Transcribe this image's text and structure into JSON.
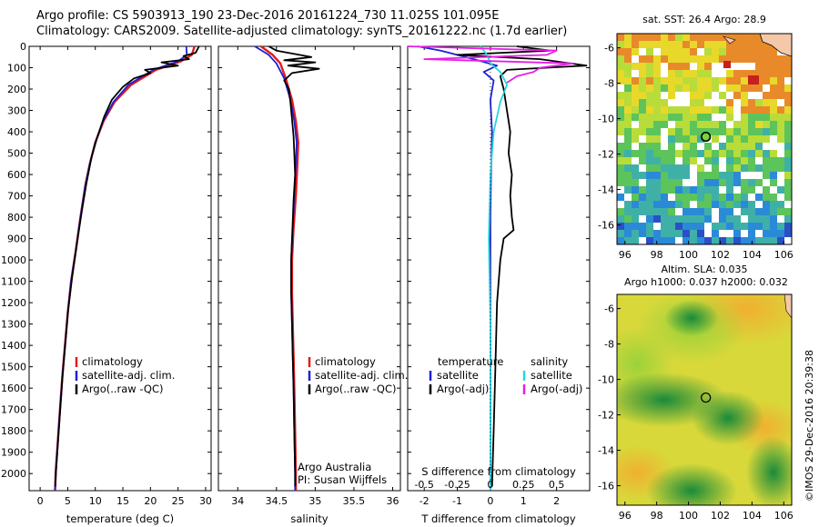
{
  "header": {
    "line1": "Argo profile: CS 5903913_190 23-Dec-2016 20161224_730 11.025S 101.095E",
    "line2": "Climatology: CARS2009. Satellite-adjusted climatology: synTS_20161222.nc (1.7d earlier)"
  },
  "colors": {
    "climatology": "#e41a1c",
    "satellite": "#1f1fd6",
    "argo": "#000000",
    "sat_cyan": "#22d8e0",
    "argo_magenta": "#e61ee6"
  },
  "chart_data": [
    {
      "id": "temperature",
      "type": "line",
      "xlabel": "temperature (deg C)",
      "xlim": [
        -2,
        31
      ],
      "ylim": [
        2080,
        0
      ],
      "xticks": [
        0,
        5,
        10,
        15,
        20,
        25,
        30
      ],
      "yticks": [
        0,
        100,
        200,
        300,
        400,
        500,
        600,
        700,
        800,
        900,
        1000,
        1100,
        1200,
        1300,
        1400,
        1500,
        1600,
        1700,
        1800,
        1900,
        2000
      ],
      "legend": [
        "climatology",
        "satellite-adj. clim.",
        "Argo(..raw -QC)"
      ],
      "series": [
        {
          "name": "climatology",
          "color": "#e41a1c",
          "points": [
            [
              28,
              0
            ],
            [
              27.5,
              40
            ],
            [
              25.5,
              70
            ],
            [
              21,
              110
            ],
            [
              16.5,
              180
            ],
            [
              13.5,
              260
            ],
            [
              11.5,
              350
            ],
            [
              10,
              450
            ],
            [
              9,
              550
            ],
            [
              8.2,
              650
            ],
            [
              7.3,
              800
            ],
            [
              6.5,
              950
            ],
            [
              5.6,
              1100
            ],
            [
              5,
              1250
            ],
            [
              4.5,
              1400
            ],
            [
              4,
              1550
            ],
            [
              3.6,
              1700
            ],
            [
              3.2,
              1850
            ],
            [
              2.8,
              2000
            ],
            [
              2.7,
              2080
            ]
          ]
        },
        {
          "name": "satellite-adj. clim.",
          "color": "#1f1fd6",
          "points": [
            [
              26.5,
              0
            ],
            [
              26.6,
              40
            ],
            [
              25,
              70
            ],
            [
              20.5,
              110
            ],
            [
              16,
              180
            ],
            [
              13.3,
              260
            ],
            [
              11.4,
              350
            ],
            [
              10,
              450
            ],
            [
              9,
              550
            ],
            [
              8.2,
              650
            ],
            [
              7.3,
              800
            ],
            [
              6.5,
              950
            ],
            [
              5.6,
              1100
            ],
            [
              5,
              1250
            ],
            [
              4.5,
              1400
            ],
            [
              4,
              1550
            ],
            [
              3.6,
              1700
            ],
            [
              3.2,
              1850
            ],
            [
              2.8,
              2000
            ],
            [
              2.7,
              2080
            ]
          ]
        },
        {
          "name": "Argo(..raw -QC)",
          "color": "#000000",
          "points": [
            [
              28.8,
              0
            ],
            [
              28.2,
              30
            ],
            [
              26,
              45
            ],
            [
              27,
              60
            ],
            [
              22,
              75
            ],
            [
              25,
              90
            ],
            [
              19,
              110
            ],
            [
              20,
              125
            ],
            [
              17,
              150
            ],
            [
              15,
              190
            ],
            [
              13,
              250
            ],
            [
              11.6,
              330
            ],
            [
              10.3,
              430
            ],
            [
              9.3,
              520
            ],
            [
              8.4,
              640
            ],
            [
              7.5,
              780
            ],
            [
              6.8,
              900
            ],
            [
              5.8,
              1080
            ],
            [
              5.1,
              1230
            ],
            [
              4.6,
              1380
            ],
            [
              4.1,
              1530
            ],
            [
              3.7,
              1680
            ],
            [
              3.3,
              1830
            ],
            [
              2.9,
              1980
            ],
            [
              2.75,
              2060
            ]
          ]
        }
      ]
    },
    {
      "id": "salinity",
      "type": "line",
      "xlabel": "salinity",
      "xlim": [
        33.75,
        36.1
      ],
      "ylim": [
        2080,
        0
      ],
      "xticks": [
        34,
        34.5,
        35,
        35.5,
        36
      ],
      "legend": [
        "climatology",
        "satellite-adj. clim.",
        "Argo(..raw -QC)"
      ],
      "annotations": [
        "Argo Australia",
        "PI: Susan Wijffels"
      ],
      "series": [
        {
          "name": "climatology",
          "color": "#e41a1c",
          "points": [
            [
              34.3,
              0
            ],
            [
              34.45,
              40
            ],
            [
              34.55,
              80
            ],
            [
              34.62,
              150
            ],
            [
              34.7,
              250
            ],
            [
              34.75,
              350
            ],
            [
              34.78,
              450
            ],
            [
              34.77,
              550
            ],
            [
              34.75,
              700
            ],
            [
              34.72,
              850
            ],
            [
              34.7,
              1000
            ],
            [
              34.7,
              1150
            ],
            [
              34.71,
              1300
            ],
            [
              34.72,
              1450
            ],
            [
              34.73,
              1600
            ],
            [
              34.74,
              1800
            ],
            [
              34.75,
              2000
            ],
            [
              34.75,
              2080
            ]
          ]
        },
        {
          "name": "satellite-adj. clim.",
          "color": "#1f1fd6",
          "points": [
            [
              34.22,
              0
            ],
            [
              34.4,
              40
            ],
            [
              34.5,
              80
            ],
            [
              34.6,
              150
            ],
            [
              34.68,
              250
            ],
            [
              34.73,
              350
            ],
            [
              34.76,
              450
            ],
            [
              34.75,
              550
            ],
            [
              34.73,
              700
            ],
            [
              34.71,
              850
            ],
            [
              34.69,
              1000
            ],
            [
              34.69,
              1150
            ],
            [
              34.7,
              1300
            ],
            [
              34.71,
              1450
            ],
            [
              34.72,
              1600
            ],
            [
              34.73,
              1800
            ],
            [
              34.74,
              2000
            ],
            [
              34.74,
              2080
            ]
          ]
        },
        {
          "name": "Argo(..raw -QC)",
          "color": "#000000",
          "points": [
            [
              34.4,
              0
            ],
            [
              34.5,
              20
            ],
            [
              34.95,
              50
            ],
            [
              34.6,
              65
            ],
            [
              35.0,
              75
            ],
            [
              34.65,
              90
            ],
            [
              35.05,
              105
            ],
            [
              34.7,
              125
            ],
            [
              34.6,
              160
            ],
            [
              34.66,
              200
            ],
            [
              34.68,
              260
            ],
            [
              34.7,
              340
            ],
            [
              34.72,
              420
            ],
            [
              34.73,
              500
            ],
            [
              34.74,
              600
            ],
            [
              34.72,
              720
            ],
            [
              34.71,
              820
            ],
            [
              34.7,
              900
            ],
            [
              34.69,
              1000
            ],
            [
              34.69,
              1150
            ],
            [
              34.7,
              1300
            ],
            [
              34.71,
              1450
            ],
            [
              34.72,
              1600
            ],
            [
              34.73,
              1800
            ],
            [
              34.74,
              2000
            ],
            [
              34.74,
              2060
            ]
          ]
        }
      ]
    },
    {
      "id": "difference",
      "type": "line",
      "xlabel": "T difference from climatology",
      "xlabel2": "S difference from climatology",
      "xlim": [
        -2.5,
        3
      ],
      "ylim": [
        2080,
        0
      ],
      "xticks": [
        -2,
        -1,
        0,
        1,
        2
      ],
      "xticks_top_values": [
        -0.5,
        -0.25,
        0,
        0.25,
        0.5
      ],
      "xticks_top": [
        "-0.5",
        "-0.25",
        "0",
        "0.25",
        "0.5"
      ],
      "legend_left_title": "temperature",
      "legend_right_title": "salinity",
      "legend": [
        "satellite",
        "Argo(-adj)",
        "satellite",
        "Argo(-adj)"
      ],
      "series": [
        {
          "name": "satellite",
          "color": "#1f1fd6",
          "points": [
            [
              -2.2,
              0
            ],
            [
              -1.5,
              20
            ],
            [
              -0.5,
              60
            ],
            [
              0.2,
              90
            ],
            [
              -0.2,
              120
            ],
            [
              0.1,
              160
            ],
            [
              0.0,
              250
            ],
            [
              0.05,
              400
            ],
            [
              0.02,
              600
            ],
            [
              0.0,
              800
            ],
            [
              0.0,
              1100
            ],
            [
              0.0,
              1500
            ],
            [
              0.0,
              2080
            ]
          ]
        },
        {
          "name": "Argo(-adj)",
          "color": "#000000",
          "points": [
            [
              0.8,
              0
            ],
            [
              1.8,
              20
            ],
            [
              -1.0,
              40
            ],
            [
              1.5,
              60
            ],
            [
              2.9,
              90
            ],
            [
              0.5,
              110
            ],
            [
              0.3,
              140
            ],
            [
              0.4,
              200
            ],
            [
              0.5,
              300
            ],
            [
              0.6,
              400
            ],
            [
              0.55,
              500
            ],
            [
              0.65,
              600
            ],
            [
              0.6,
              700
            ],
            [
              0.65,
              800
            ],
            [
              0.7,
              860
            ],
            [
              0.4,
              900
            ],
            [
              0.3,
              1000
            ],
            [
              0.2,
              1200
            ],
            [
              0.15,
              1500
            ],
            [
              0.1,
              1800
            ],
            [
              0.05,
              2060
            ]
          ]
        },
        {
          "name": "satellite",
          "color": "#22d8e0",
          "points": [
            [
              -0.3,
              0
            ],
            [
              -0.1,
              40
            ],
            [
              0.0,
              80
            ],
            [
              0.3,
              120
            ],
            [
              0.5,
              180
            ],
            [
              0.3,
              260
            ],
            [
              0.1,
              400
            ],
            [
              0.0,
              600
            ],
            [
              -0.05,
              900
            ],
            [
              0.0,
              1300
            ],
            [
              0.0,
              1700
            ],
            [
              0.0,
              2080
            ]
          ]
        },
        {
          "name": "Argo(-adj)",
          "color": "#e61ee6",
          "points": [
            [
              -2.5,
              0
            ],
            [
              2.0,
              20
            ],
            [
              1.7,
              40
            ],
            [
              -2.0,
              60
            ],
            [
              2.5,
              80
            ],
            [
              1.5,
              100
            ],
            [
              1.3,
              120
            ],
            [
              0.8,
              140
            ],
            [
              0.5,
              170
            ]
          ]
        }
      ]
    },
    {
      "id": "sst_map",
      "type": "heatmap",
      "title": "sat. SST: 26.4 Argo: 28.9",
      "xticks": [
        "96",
        "98",
        "100",
        "102",
        "104",
        "106"
      ],
      "yticks": [
        "-6",
        "-8",
        "-10",
        "-12",
        "-14",
        "-16"
      ],
      "marker": {
        "lon": 101.095,
        "lat": -11.025
      }
    },
    {
      "id": "sla_map",
      "type": "heatmap",
      "title": "Altim. SLA: 0.035",
      "subtitle": "Argo h1000: 0.037 h2000: 0.032",
      "xticks": [
        "96",
        "98",
        "100",
        "102",
        "104",
        "106"
      ],
      "yticks": [
        "-6",
        "-8",
        "-10",
        "-12",
        "-14",
        "-16"
      ],
      "marker": {
        "lon": 101.095,
        "lat": -11.025
      }
    }
  ],
  "footer": {
    "credit": "©IMOS 29-Dec-2016 20:39:38"
  }
}
